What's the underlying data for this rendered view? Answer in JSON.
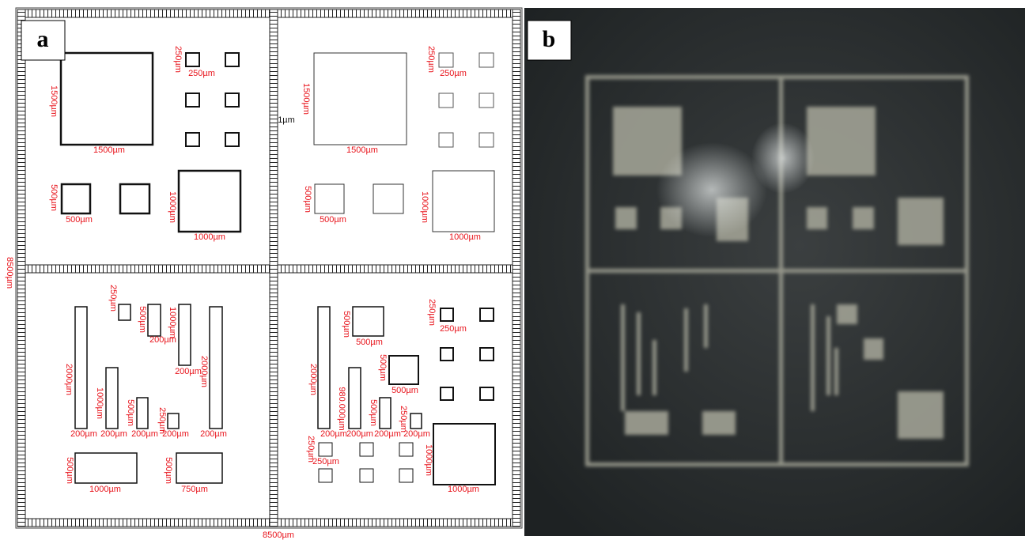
{
  "panels": [
    {
      "label": "a"
    },
    {
      "label": "b"
    }
  ],
  "labels": [
    "1500µm",
    "1500µm",
    "250µm",
    "250µm",
    "500µm",
    "500µm",
    "1000µm",
    "1000µm",
    "1500µm",
    "1500µm",
    "250µm",
    "250µm",
    "500µm",
    "500µm",
    "1000µm",
    "1000µm",
    "1µm",
    "8500µm",
    "8500µm",
    "2000µm",
    "250µm",
    "500µm",
    "1000µm",
    "2000µm",
    "200µm",
    "200µm",
    "1000µm",
    "500µm",
    "250µm",
    "200µm",
    "200µm",
    "200µm",
    "200µm",
    "200µm",
    "500µm",
    "1000µm",
    "500µm",
    "750µm",
    "2000µm",
    "500µm",
    "500µm",
    "500µm",
    "500µm",
    "980.000µm",
    "500µm",
    "250µm",
    "200µm",
    "200µm",
    "200µm",
    "200µm",
    "250µm",
    "250µm",
    "250µm",
    "250µm",
    "1000µm",
    "1000µm"
  ]
}
